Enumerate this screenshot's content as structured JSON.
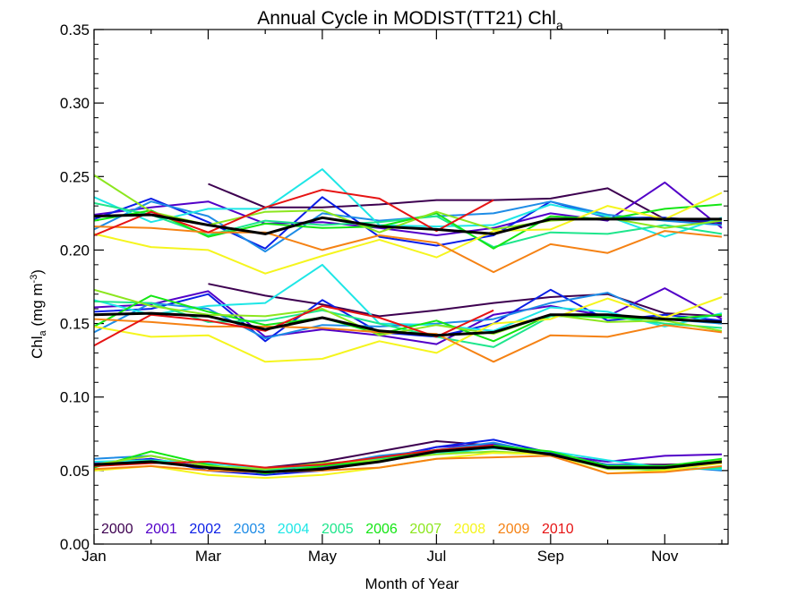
{
  "chart_data": {
    "type": "line",
    "title": "Annual Cycle in MODIST(TT21) Chl",
    "title_subscript": "a",
    "xlabel": "Month of Year",
    "ylabel": {
      "main": "Chl",
      "sub": "a",
      "unit_pre": " (mg m",
      "unit_sup": "-3",
      "unit_post": ")"
    },
    "xlim": [
      1,
      12
    ],
    "ylim": [
      0,
      0.35
    ],
    "x_ticks": [
      {
        "x": 1,
        "label": "Jan"
      },
      {
        "x": 3,
        "label": "Mar"
      },
      {
        "x": 5,
        "label": "May"
      },
      {
        "x": 7,
        "label": "Jul"
      },
      {
        "x": 9,
        "label": "Sep"
      },
      {
        "x": 11,
        "label": "Nov"
      }
    ],
    "y_ticks": [
      "0.00",
      "0.05",
      "0.10",
      "0.15",
      "0.20",
      "0.25",
      "0.30",
      "0.35"
    ],
    "x": [
      1,
      2,
      3,
      4,
      5,
      6,
      7,
      8,
      9,
      10,
      11,
      12
    ],
    "legend_position": "bottom-left",
    "groups": [
      "upper",
      "middle",
      "lower"
    ],
    "series": [
      {
        "name": "2000",
        "color": "#3d0050",
        "upper": [
          null,
          null,
          0.245,
          0.229,
          0.229,
          0.231,
          0.234,
          0.234,
          0.235,
          0.242,
          0.221,
          0.218
        ],
        "middle": [
          null,
          null,
          0.177,
          0.169,
          0.163,
          0.155,
          0.159,
          0.164,
          0.168,
          0.17,
          0.157,
          0.155
        ],
        "lower": [
          null,
          null,
          0.051,
          0.052,
          0.056,
          0.063,
          0.07,
          0.067,
          0.062,
          0.054,
          0.054,
          0.055
        ]
      },
      {
        "name": "2001",
        "color": "#5200c8",
        "upper": [
          0.224,
          0.229,
          0.233,
          0.218,
          0.219,
          0.215,
          0.21,
          0.215,
          0.225,
          0.22,
          0.246,
          0.215
        ],
        "middle": [
          0.161,
          0.163,
          0.172,
          0.141,
          0.146,
          0.142,
          0.136,
          0.156,
          0.162,
          0.155,
          0.174,
          0.153
        ],
        "lower": [
          0.055,
          0.058,
          0.052,
          0.05,
          0.052,
          0.058,
          0.066,
          0.068,
          0.061,
          0.056,
          0.06,
          0.061
        ]
      },
      {
        "name": "2002",
        "color": "#0a1ee6",
        "upper": [
          0.221,
          0.235,
          0.219,
          0.201,
          0.236,
          0.209,
          0.203,
          0.21,
          0.233,
          0.222,
          0.222,
          0.219
        ],
        "middle": [
          0.158,
          0.16,
          0.17,
          0.138,
          0.166,
          0.144,
          0.141,
          0.15,
          0.173,
          0.152,
          0.156,
          0.152
        ],
        "lower": [
          0.054,
          0.058,
          0.05,
          0.047,
          0.05,
          0.057,
          0.066,
          0.071,
          0.062,
          0.053,
          0.052,
          0.057
        ]
      },
      {
        "name": "2003",
        "color": "#1e8ce6",
        "upper": [
          0.214,
          0.233,
          0.223,
          0.199,
          0.225,
          0.22,
          0.223,
          0.225,
          0.233,
          0.224,
          0.22,
          0.217
        ],
        "middle": [
          0.144,
          0.164,
          0.16,
          0.14,
          0.149,
          0.148,
          0.15,
          0.153,
          0.164,
          0.171,
          0.153,
          0.15
        ],
        "lower": [
          0.058,
          0.06,
          0.053,
          0.048,
          0.053,
          0.06,
          0.064,
          0.069,
          0.061,
          0.054,
          0.053,
          0.05
        ]
      },
      {
        "name": "2004",
        "color": "#1ee6e6",
        "upper": [
          0.236,
          0.219,
          0.228,
          0.228,
          0.255,
          0.217,
          0.216,
          0.217,
          0.231,
          0.223,
          0.209,
          0.222
        ],
        "middle": [
          0.166,
          0.156,
          0.162,
          0.164,
          0.19,
          0.15,
          0.149,
          0.145,
          0.161,
          0.158,
          0.148,
          0.157
        ],
        "lower": [
          0.056,
          0.057,
          0.055,
          0.051,
          0.053,
          0.058,
          0.062,
          0.065,
          0.063,
          0.057,
          0.052,
          0.051
        ]
      },
      {
        "name": "2005",
        "color": "#1ee68c",
        "upper": [
          0.232,
          0.224,
          0.21,
          0.22,
          0.217,
          0.219,
          0.223,
          0.202,
          0.212,
          0.211,
          0.217,
          0.211
        ],
        "middle": [
          0.165,
          0.164,
          0.151,
          0.152,
          0.159,
          0.15,
          0.141,
          0.134,
          0.155,
          0.155,
          0.15,
          0.147
        ],
        "lower": [
          0.053,
          0.057,
          0.052,
          0.05,
          0.054,
          0.058,
          0.063,
          0.062,
          0.061,
          0.052,
          0.05,
          0.052
        ]
      },
      {
        "name": "2006",
        "color": "#14e614",
        "upper": [
          0.22,
          0.227,
          0.209,
          0.218,
          0.215,
          0.216,
          0.225,
          0.201,
          0.223,
          0.221,
          0.228,
          0.231
        ],
        "middle": [
          0.148,
          0.169,
          0.158,
          0.149,
          0.154,
          0.143,
          0.152,
          0.138,
          0.156,
          0.154,
          0.153,
          0.156
        ],
        "lower": [
          0.052,
          0.063,
          0.054,
          0.048,
          0.053,
          0.057,
          0.064,
          0.067,
          0.063,
          0.053,
          0.053,
          0.058
        ]
      },
      {
        "name": "2007",
        "color": "#8ce61e",
        "upper": [
          0.251,
          0.226,
          0.217,
          0.226,
          0.227,
          0.212,
          0.226,
          0.214,
          0.22,
          0.222,
          0.215,
          0.22
        ],
        "middle": [
          0.173,
          0.162,
          0.156,
          0.155,
          0.16,
          0.142,
          0.149,
          0.143,
          0.156,
          0.151,
          0.152,
          0.145
        ],
        "lower": [
          0.054,
          0.06,
          0.053,
          0.051,
          0.055,
          0.057,
          0.061,
          0.063,
          0.061,
          0.051,
          0.051,
          0.057
        ]
      },
      {
        "name": "2008",
        "color": "#f5f51e",
        "upper": [
          0.211,
          0.202,
          0.2,
          0.184,
          0.196,
          0.207,
          0.195,
          0.213,
          0.214,
          0.23,
          0.221,
          0.239
        ],
        "middle": [
          0.148,
          0.141,
          0.142,
          0.124,
          0.126,
          0.138,
          0.13,
          0.15,
          0.153,
          0.167,
          0.154,
          0.168
        ],
        "lower": [
          0.05,
          0.053,
          0.047,
          0.045,
          0.047,
          0.052,
          0.058,
          0.062,
          0.061,
          0.048,
          0.05,
          0.055
        ]
      },
      {
        "name": "2009",
        "color": "#f58214",
        "upper": [
          0.216,
          0.215,
          0.212,
          0.212,
          0.2,
          0.21,
          0.205,
          0.185,
          0.204,
          0.198,
          0.213,
          0.209
        ],
        "middle": [
          0.153,
          0.151,
          0.148,
          0.148,
          0.147,
          0.144,
          0.143,
          0.124,
          0.142,
          0.141,
          0.149,
          0.144
        ],
        "lower": [
          0.051,
          0.053,
          0.05,
          0.049,
          0.05,
          0.052,
          0.058,
          0.059,
          0.06,
          0.048,
          0.049,
          0.053
        ]
      },
      {
        "name": "2010",
        "color": "#e61414",
        "upper": [
          0.21,
          0.226,
          0.212,
          0.229,
          0.241,
          0.235,
          0.213,
          0.234,
          null,
          null,
          null,
          null
        ],
        "middle": [
          0.135,
          0.156,
          0.152,
          0.145,
          0.162,
          0.154,
          0.141,
          0.159,
          null,
          null,
          null,
          null
        ],
        "lower": [
          0.053,
          0.055,
          0.056,
          0.052,
          0.054,
          0.059,
          0.064,
          0.067,
          null,
          null,
          null,
          null
        ]
      }
    ],
    "mean_series": {
      "color": "#000000",
      "upper": [
        0.223,
        0.224,
        0.217,
        0.211,
        0.222,
        0.216,
        0.214,
        0.211,
        0.221,
        0.221,
        0.221,
        0.221
      ],
      "middle": [
        0.156,
        0.157,
        0.155,
        0.146,
        0.154,
        0.145,
        0.142,
        0.144,
        0.156,
        0.156,
        0.153,
        0.151
      ],
      "lower": [
        0.054,
        0.056,
        0.052,
        0.049,
        0.051,
        0.056,
        0.063,
        0.066,
        0.061,
        0.052,
        0.052,
        0.056
      ]
    }
  }
}
